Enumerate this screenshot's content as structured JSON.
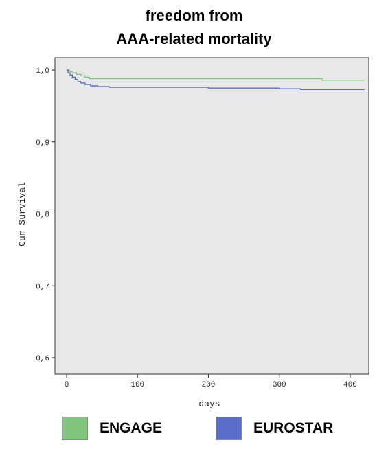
{
  "chart_data": {
    "type": "line",
    "title": [
      "freedom from",
      "AAA-related mortality"
    ],
    "xlabel": "days",
    "ylabel": "Cum Survival",
    "xlim": [
      0,
      420
    ],
    "ylim": [
      0.6,
      1.0
    ],
    "x_ticks": [
      0,
      100,
      200,
      300,
      400
    ],
    "y_ticks": [
      0.6,
      0.7,
      0.8,
      0.9,
      1.0
    ],
    "y_tick_labels": [
      "0,6",
      "0,7",
      "0,8",
      "0,9",
      "1,0"
    ],
    "x_tick_labels": [
      "0",
      "100",
      "200",
      "300",
      "400"
    ],
    "grid": false,
    "background": "#e8e8e8",
    "legend_position": "bottom",
    "series": [
      {
        "name": "ENGAGE",
        "color": "#82c57e",
        "step": true,
        "points": [
          [
            0,
            1.0
          ],
          [
            4,
            0.998
          ],
          [
            8,
            0.996
          ],
          [
            14,
            0.994
          ],
          [
            20,
            0.992
          ],
          [
            26,
            0.99
          ],
          [
            32,
            0.988
          ],
          [
            330,
            0.988
          ],
          [
            360,
            0.986
          ],
          [
            420,
            0.986
          ]
        ]
      },
      {
        "name": "EUROSTAR",
        "color": "#5a6ec8",
        "step": true,
        "points": [
          [
            0,
            1.0
          ],
          [
            2,
            0.996
          ],
          [
            5,
            0.993
          ],
          [
            8,
            0.99
          ],
          [
            12,
            0.987
          ],
          [
            16,
            0.984
          ],
          [
            20,
            0.982
          ],
          [
            26,
            0.98
          ],
          [
            34,
            0.978
          ],
          [
            44,
            0.977
          ],
          [
            60,
            0.976
          ],
          [
            120,
            0.976
          ],
          [
            200,
            0.975
          ],
          [
            300,
            0.974
          ],
          [
            330,
            0.973
          ],
          [
            420,
            0.973
          ]
        ]
      }
    ]
  }
}
